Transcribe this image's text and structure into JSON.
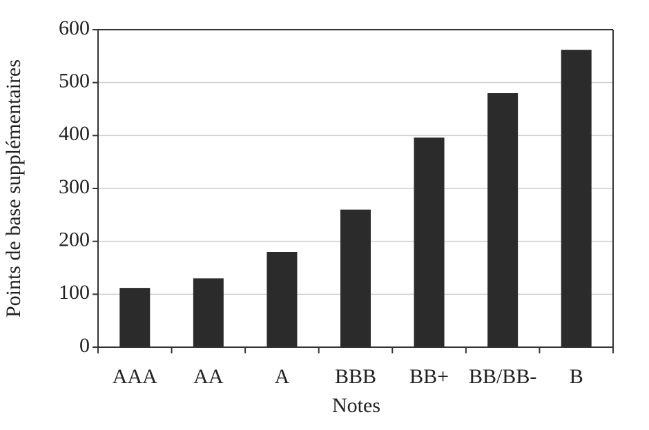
{
  "chart_data": {
    "type": "bar",
    "x_label": "Notes",
    "y_label": "Points de base supplémentaires",
    "categories": [
      "AAA",
      "AA",
      "A",
      "BBB",
      "BB+",
      "BB/BB-",
      "B"
    ],
    "values": [
      112,
      130,
      180,
      260,
      396,
      480,
      562
    ],
    "color": "#2b2b2b",
    "ylim": [
      0,
      600
    ],
    "yticks": [
      0,
      100,
      200,
      300,
      400,
      500,
      600
    ],
    "grid": true
  }
}
